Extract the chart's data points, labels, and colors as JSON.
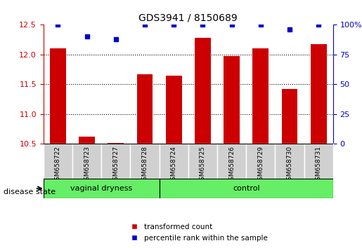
{
  "title": "GDS3941 / 8150689",
  "samples": [
    "GSM658722",
    "GSM658723",
    "GSM658727",
    "GSM658728",
    "GSM658724",
    "GSM658725",
    "GSM658726",
    "GSM658729",
    "GSM658730",
    "GSM658731"
  ],
  "bar_values": [
    12.1,
    10.62,
    10.52,
    11.67,
    11.65,
    12.28,
    11.97,
    12.1,
    11.42,
    12.18
  ],
  "dot_values": [
    100,
    90,
    88,
    100,
    100,
    100,
    100,
    100,
    96,
    100
  ],
  "bar_bottom": 10.5,
  "ylim_left": [
    10.5,
    12.5
  ],
  "ylim_right": [
    0,
    100
  ],
  "yticks_left": [
    10.5,
    11.0,
    11.5,
    12.0,
    12.5
  ],
  "yticks_right": [
    0,
    25,
    50,
    75,
    100
  ],
  "bar_color": "#cc0000",
  "dot_color": "#0000cc",
  "group1_label": "vaginal dryness",
  "group2_label": "control",
  "group1_count": 4,
  "group2_count": 6,
  "group_bg_color": "#66ee66",
  "sample_bg_color": "#d0d0d0",
  "legend_bar_label": "transformed count",
  "legend_dot_label": "percentile rank within the sample",
  "disease_state_label": "disease state",
  "grid_color": "#000000",
  "axis_left_color": "#cc0000",
  "axis_right_color": "#0000cc",
  "bar_width": 0.55
}
